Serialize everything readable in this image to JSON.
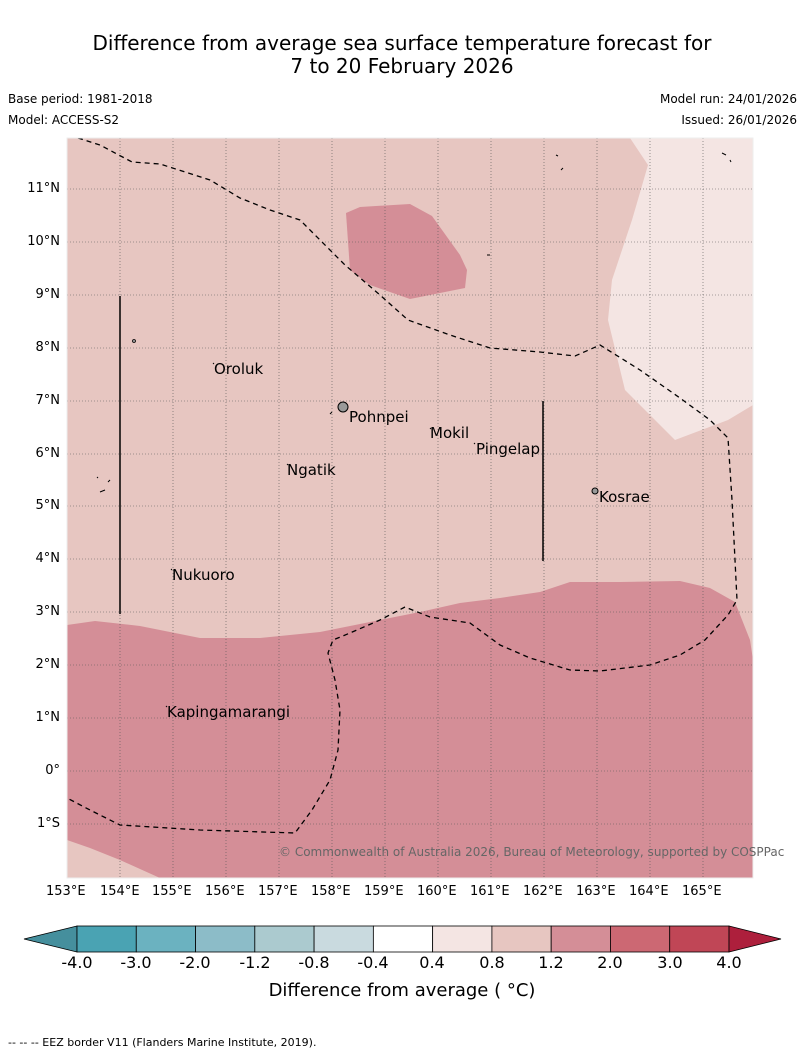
{
  "title": {
    "line1": "Difference from average sea surface temperature forecast for",
    "line2": "7 to 20 February 2026"
  },
  "meta": {
    "base_period": "Base period: 1981-2018",
    "model": "Model: ACCESS-S2",
    "model_run": "Model run: 24/01/2026",
    "issued": "Issued: 26/01/2026"
  },
  "map": {
    "lon_labels": [
      "153°E",
      "154°E",
      "155°E",
      "156°E",
      "157°E",
      "158°E",
      "159°E",
      "160°E",
      "161°E",
      "162°E",
      "163°E",
      "164°E",
      "165°E"
    ],
    "lat_labels": [
      "11°N",
      "10°N",
      "9°N",
      "8°N",
      "7°N",
      "6°N",
      "5°N",
      "4°N",
      "3°N",
      "2°N",
      "1°N",
      "0°",
      "1°S"
    ],
    "places": {
      "oroluk": "Oroluk",
      "pohnpei": "Pohnpei",
      "mokil": "Mokil",
      "pingelap": "Pingelap",
      "ngatik": "Ngatik",
      "kosrae": "Kosrae",
      "nukuoro": "Nukuoro",
      "kapingamarangi": "Kapingamarangi"
    },
    "copyright": "© Commonwealth of Australia 2026, Bureau of Meteorology, supported by COSPPac"
  },
  "colorbar": {
    "title": "Difference from average ( °C)",
    "ticks": [
      "-4.0",
      "-3.0",
      "-2.0",
      "-1.2",
      "-0.8",
      "-0.4",
      "0.4",
      "0.8",
      "1.2",
      "2.0",
      "3.0",
      "4.0"
    ],
    "colors": [
      "#458f9d",
      "#4aa3b3",
      "#6bb2c0",
      "#8cbcc8",
      "#abcacf",
      "#c9dadf",
      "#ffffff",
      "#f4e5e3",
      "#e7c6c1",
      "#d48e97",
      "#cc6873",
      "#c04656",
      "#ad1f3c"
    ]
  },
  "footer": "--  --  -- EEZ border V11 (Flanders Marine Institute, 2019)."
}
